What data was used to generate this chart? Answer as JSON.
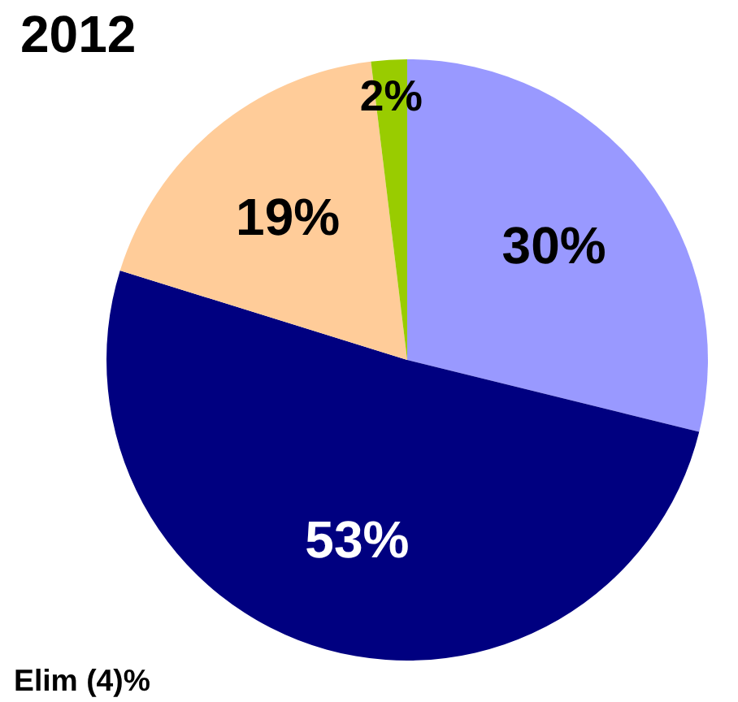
{
  "chart_data": {
    "type": "pie",
    "title": "2012",
    "categories": [
      null,
      null,
      null,
      null
    ],
    "values": [
      30,
      53,
      19,
      2
    ],
    "colors": [
      "#9999ff",
      "#000080",
      "#ffcc99",
      "#99cc00"
    ],
    "value_labels": [
      "30%",
      "53%",
      "19%",
      "2%"
    ],
    "annotations": [
      "Elim (4)%"
    ]
  }
}
